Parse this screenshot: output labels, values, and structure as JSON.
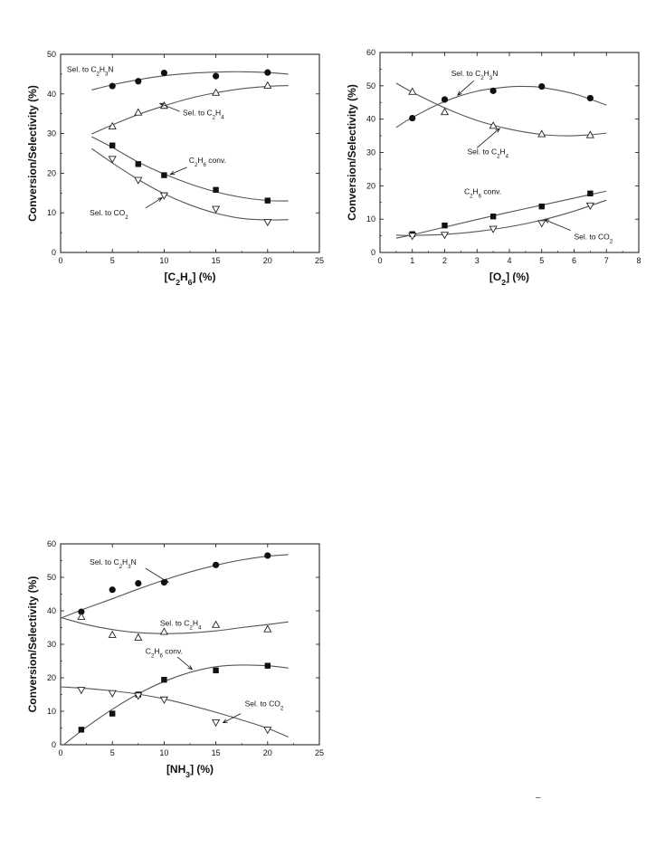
{
  "page": {
    "stray_mark": "–"
  },
  "chart_data": [
    {
      "type": "scatter",
      "id": "c2h6",
      "xlabel": "[C2H6] (%)",
      "ylabel": "Conversion/Selectivity (%)",
      "xlim": [
        0,
        25
      ],
      "ylim": [
        0,
        50
      ],
      "xticks": [
        0,
        5,
        10,
        15,
        20,
        25
      ],
      "yticks": [
        0,
        10,
        20,
        30,
        40,
        50
      ],
      "grid": false,
      "series": [
        {
          "name": "Sel. to C2H3N",
          "marker": "filled-circle",
          "x": [
            5,
            7.5,
            10,
            15,
            20
          ],
          "y": [
            42,
            43.2,
            45.3,
            44.5,
            45.4
          ],
          "curve_x": [
            3,
            5,
            7.5,
            10,
            12.5,
            15,
            17.5,
            20,
            22
          ],
          "curve_y": [
            41,
            42.3,
            43.6,
            44.6,
            45.2,
            45.5,
            45.6,
            45.4,
            45
          ]
        },
        {
          "name": "Sel. to C2H4",
          "marker": "open-triangle-up",
          "x": [
            5,
            7.5,
            10,
            15,
            20
          ],
          "y": [
            31.8,
            35.3,
            37,
            40.3,
            42.1
          ],
          "curve_x": [
            3,
            5,
            7.5,
            10,
            12.5,
            15,
            17.5,
            20,
            22
          ],
          "curve_y": [
            29.9,
            32.2,
            34.8,
            37,
            38.9,
            40.3,
            41.3,
            41.9,
            42.1
          ]
        },
        {
          "name": "C2H6 conv.",
          "marker": "filled-square",
          "x": [
            5,
            7.5,
            10,
            15,
            20
          ],
          "y": [
            27,
            22.3,
            19.5,
            15.8,
            13.1
          ],
          "curve_x": [
            3,
            5,
            7.5,
            10,
            12.5,
            15,
            17.5,
            20,
            22
          ],
          "curve_y": [
            29.2,
            26.5,
            22.8,
            19.8,
            17.3,
            15.3,
            13.9,
            13.1,
            13
          ]
        },
        {
          "name": "Sel. to CO2",
          "marker": "open-triangle-down",
          "x": [
            5,
            7.5,
            10,
            15,
            20
          ],
          "y": [
            23.6,
            18.3,
            14.4,
            11,
            7.7
          ],
          "curve_x": [
            3,
            5,
            7.5,
            10,
            12.5,
            15,
            17.5,
            20,
            22
          ],
          "curve_y": [
            26.2,
            22.6,
            18.4,
            14.8,
            12,
            9.9,
            8.6,
            8.2,
            8.3
          ]
        }
      ],
      "annotations": [
        {
          "text": "Sel. to C",
          "sub": "2",
          "text2": "H",
          "sub2": "3",
          "text3": "N",
          "at": [
            0.6,
            45.6
          ],
          "arrow": null
        },
        {
          "text": "Sel. to C",
          "sub": "2",
          "text2": "H",
          "sub2": "4",
          "text3": "",
          "at": [
            11.8,
            34.6
          ],
          "arrow": [
            [
              11.5,
              35.6
            ],
            [
              9.6,
              37.6
            ]
          ]
        },
        {
          "text": "C",
          "sub": "2",
          "text2": "H",
          "sub2": "6",
          "text3": " conv.",
          "at": [
            12.4,
            22.6
          ],
          "arrow": [
            [
              12.2,
              21.5
            ],
            [
              10.6,
              19.7
            ]
          ]
        },
        {
          "text": "Sel. to CO",
          "sub": "2",
          "text2": "",
          "sub2": "",
          "text3": "",
          "at": [
            2.8,
            9.4
          ],
          "arrow": [
            [
              8.2,
              11.2
            ],
            [
              9.8,
              13.8
            ]
          ]
        }
      ]
    },
    {
      "type": "scatter",
      "id": "o2",
      "xlabel": "[O2] (%)",
      "ylabel": "Conversion/Selectivity (%)",
      "xlim": [
        0,
        8
      ],
      "ylim": [
        0,
        60
      ],
      "xticks": [
        0,
        1,
        2,
        3,
        4,
        5,
        6,
        7,
        8
      ],
      "yticks": [
        0,
        10,
        20,
        30,
        40,
        50,
        60
      ],
      "grid": false,
      "series": [
        {
          "name": "Sel. to C2H3N",
          "marker": "filled-circle",
          "x": [
            1,
            2,
            3.5,
            5,
            6.5
          ],
          "y": [
            40.3,
            45.9,
            48.5,
            49.8,
            46.3
          ],
          "curve_x": [
            0.5,
            1,
            2,
            3,
            4,
            4.5,
            5,
            6,
            7
          ],
          "curve_y": [
            37.5,
            40.5,
            45.3,
            48.4,
            49.7,
            49.8,
            49.5,
            47.6,
            44.2
          ]
        },
        {
          "name": "Sel. to C2H4",
          "marker": "open-triangle-up",
          "x": [
            1,
            2,
            3.5,
            5,
            6.5
          ],
          "y": [
            48.2,
            42.1,
            38,
            35.5,
            35.2
          ],
          "curve_x": [
            0.5,
            1,
            2,
            3,
            4,
            5,
            5.8,
            6.5,
            7
          ],
          "curve_y": [
            50.8,
            48.1,
            43.4,
            39.6,
            37,
            35.4,
            35,
            35.3,
            35.8
          ]
        },
        {
          "name": "C2H6 conv.",
          "marker": "filled-square",
          "x": [
            1,
            2,
            3.5,
            5,
            6.5
          ],
          "y": [
            5.5,
            8.1,
            10.8,
            13.8,
            17.7
          ],
          "curve_x": [
            0.5,
            1,
            2,
            3,
            4,
            5,
            6,
            7
          ],
          "curve_y": [
            4.3,
            5.3,
            7.6,
            9.9,
            12.1,
            14.2,
            16.3,
            18.4
          ]
        },
        {
          "name": "Sel. to CO2",
          "marker": "open-triangle-down",
          "x": [
            1,
            2,
            3.5,
            5,
            6.5
          ],
          "y": [
            5,
            5.3,
            7.1,
            8.8,
            14.1
          ],
          "curve_x": [
            0.5,
            1,
            2,
            3,
            4,
            5,
            6,
            7
          ],
          "curve_y": [
            5.2,
            5.1,
            5.4,
            6.3,
            7.7,
            9.7,
            12.4,
            15.7
          ]
        }
      ],
      "annotations": [
        {
          "text": "Sel. to C",
          "sub": "2",
          "text2": "H",
          "sub2": "3",
          "text3": "N",
          "at": [
            2.2,
            53
          ],
          "arrow": [
            [
              2.9,
              51.5
            ],
            [
              2.4,
              47.2
            ]
          ]
        },
        {
          "text": "Sel. to C",
          "sub": "2",
          "text2": "H",
          "sub2": "4",
          "text3": "",
          "at": [
            2.7,
            29.5
          ],
          "arrow": [
            [
              3,
              31.4
            ],
            [
              3.7,
              37.2
            ]
          ]
        },
        {
          "text": "C",
          "sub": "2",
          "text2": "H",
          "sub2": "6",
          "text3": " conv.",
          "at": [
            2.6,
            17.5
          ],
          "arrow": null
        },
        {
          "text": "Sel. to CO",
          "sub": "2",
          "text2": "",
          "sub2": "",
          "text3": "",
          "at": [
            6,
            3.9
          ],
          "arrow": [
            [
              5.9,
              6.6
            ],
            [
              5.1,
              9.8
            ]
          ]
        }
      ]
    },
    {
      "type": "scatter",
      "id": "nh3",
      "xlabel": "[NH3] (%)",
      "ylabel": "Conversion/Selectivity (%)",
      "xlim": [
        0,
        25
      ],
      "ylim": [
        0,
        60
      ],
      "xticks": [
        0,
        5,
        10,
        15,
        20,
        25
      ],
      "yticks": [
        0,
        10,
        20,
        30,
        40,
        50,
        60
      ],
      "grid": false,
      "series": [
        {
          "name": "Sel. to C2H3N",
          "marker": "filled-circle",
          "x": [
            2,
            5,
            7.5,
            10,
            15,
            20
          ],
          "y": [
            39.7,
            46.3,
            48.2,
            48.5,
            53.7,
            56.5
          ],
          "curve_x": [
            0,
            2.5,
            5,
            7.5,
            10,
            12.5,
            15,
            17.5,
            20,
            22
          ],
          "curve_y": [
            37.8,
            40.8,
            43.6,
            46.5,
            49.2,
            51.6,
            53.6,
            55.2,
            56.3,
            56.8
          ]
        },
        {
          "name": "Sel. to C2H4",
          "marker": "open-triangle-up",
          "x": [
            2,
            5,
            7.5,
            10,
            15,
            20
          ],
          "y": [
            38.2,
            32.8,
            32,
            33.7,
            35.8,
            34.5
          ],
          "curve_x": [
            0,
            2.5,
            5,
            7.5,
            10,
            12.5,
            15,
            17.5,
            20,
            22
          ],
          "curve_y": [
            38,
            35.9,
            34.4,
            33.5,
            33.2,
            33.4,
            34,
            35,
            35.9,
            36.7
          ]
        },
        {
          "name": "C2H6 conv.",
          "marker": "filled-square",
          "x": [
            2,
            5,
            7.5,
            10,
            15,
            20
          ],
          "y": [
            4.5,
            9.3,
            15,
            19.4,
            22.2,
            23.6
          ],
          "curve_x": [
            0.3,
            2.5,
            5,
            7.5,
            10,
            12.5,
            15,
            17.5,
            20,
            22
          ],
          "curve_y": [
            0,
            5.3,
            10.6,
            15.2,
            18.9,
            21.6,
            23.3,
            23.8,
            23.6,
            22.9
          ]
        },
        {
          "name": "Sel. to CO2",
          "marker": "open-triangle-down",
          "x": [
            2,
            5,
            7.5,
            10,
            15,
            20
          ],
          "y": [
            16.4,
            15.4,
            14.7,
            13.5,
            6.7,
            4.5
          ],
          "curve_x": [
            0,
            2.5,
            5,
            7.5,
            10,
            12.5,
            15,
            17.5,
            20,
            22
          ],
          "curve_y": [
            17.3,
            16.8,
            16.1,
            15.1,
            13.7,
            11.8,
            9.7,
            7.4,
            4.9,
            2.3
          ]
        }
      ],
      "annotations": [
        {
          "text": "Sel. to C",
          "sub": "2",
          "text2": "H",
          "sub2": "3",
          "text3": "N",
          "at": [
            2.8,
            53.8
          ],
          "arrow": [
            [
              8.2,
              52.7
            ],
            [
              10.4,
              48.5
            ]
          ]
        },
        {
          "text": "Sel. to C",
          "sub": "2",
          "text2": "H",
          "sub2": "4",
          "text3": "",
          "at": [
            9.6,
            35.6
          ],
          "arrow": null
        },
        {
          "text": "C",
          "sub": "2",
          "text2": "H",
          "sub2": "6",
          "text3": " conv.",
          "at": [
            8.2,
            27.2
          ],
          "arrow": [
            [
              11.3,
              26.2
            ],
            [
              12.7,
              22.5
            ]
          ]
        },
        {
          "text": "Sel. to CO",
          "sub": "2",
          "text2": "",
          "sub2": "",
          "text3": "",
          "at": [
            17.8,
            11.5
          ],
          "arrow": [
            [
              17.4,
              9.3
            ],
            [
              15.7,
              6.6
            ]
          ]
        }
      ]
    }
  ]
}
